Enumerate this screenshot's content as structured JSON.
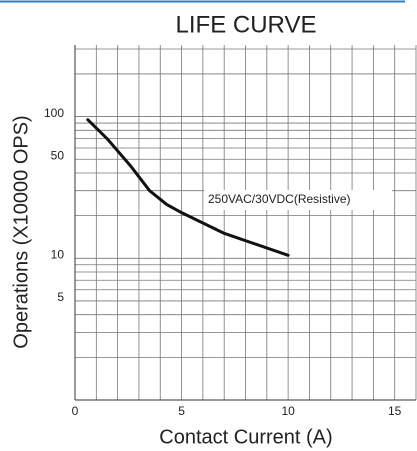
{
  "chart_data": {
    "type": "line",
    "title": "LIFE CURVE",
    "x_label": "Contact Current (A)",
    "y_label": "Operations (X10000 OPS)",
    "series": [
      {
        "name": "250VAC/30VDC(Resistive)",
        "color": "#111111",
        "x": [
          0.6,
          1.5,
          2.6,
          3.5,
          4.3,
          5,
          7,
          10
        ],
        "values": [
          95,
          70,
          45,
          30,
          24,
          21,
          15,
          10.5
        ]
      }
    ],
    "xlim": [
      0,
      16
    ],
    "xticks": [
      0,
      5,
      10,
      15
    ],
    "xgrid": [
      0,
      1,
      2,
      3,
      4,
      5,
      6,
      7,
      8,
      9,
      10,
      11,
      12,
      13,
      14,
      15,
      16
    ],
    "ylim": [
      1,
      320
    ],
    "yscale": "log",
    "yticks": [
      5,
      10,
      50,
      100
    ],
    "ygrid": [
      1,
      2,
      3,
      4,
      5,
      6,
      7,
      8,
      9,
      10,
      20,
      30,
      40,
      50,
      60,
      70,
      80,
      90,
      100,
      200,
      300
    ],
    "grid": true
  }
}
